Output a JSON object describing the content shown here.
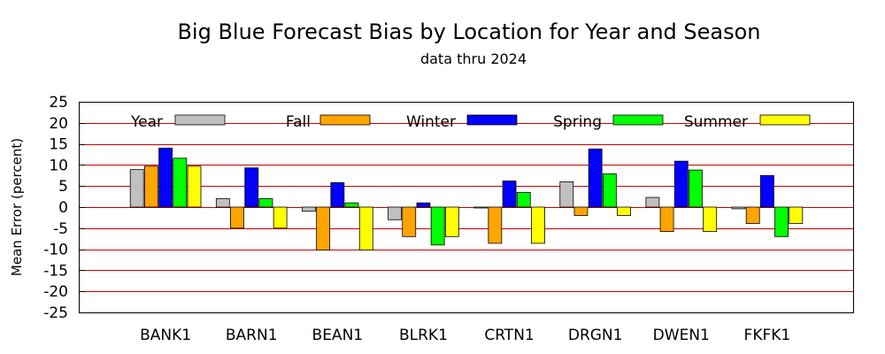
{
  "chart_data": {
    "type": "bar",
    "title": "Big Blue Forecast Bias by Location for Year and Season",
    "subtitle": "data thru 2024",
    "xlabel": "",
    "ylabel": "Mean Error (percent)",
    "ylim": [
      -25,
      25
    ],
    "yticks": [
      25,
      20,
      15,
      10,
      5,
      0,
      -5,
      -10,
      -15,
      -20,
      -25
    ],
    "ytick_labels": [
      "25",
      "20",
      "15",
      "10",
      "5",
      "0",
      "-5",
      "-10",
      "-15",
      "-20",
      "-25"
    ],
    "grid": true,
    "grid_color": "#cc0000",
    "legend_position": "top, inside plot",
    "categories": [
      "BANK1",
      "BARN1",
      "BEAN1",
      "BLRK1",
      "CRTN1",
      "DRGN1",
      "DWEN1",
      "FKFK1"
    ],
    "series": [
      {
        "name": "Year",
        "color": "#c0c0c0",
        "values": [
          8.9,
          2.0,
          -1.0,
          -3.0,
          0.0,
          6.0,
          2.3,
          -0.4
        ]
      },
      {
        "name": "Fall",
        "color": "#ffa500",
        "values": [
          9.7,
          -5.0,
          -10.2,
          -7.0,
          -8.6,
          -2.0,
          -5.8,
          -3.9
        ]
      },
      {
        "name": "Winter",
        "color": "#0000ff",
        "values": [
          14.0,
          9.3,
          5.8,
          1.0,
          6.2,
          13.8,
          10.9,
          7.5
        ]
      },
      {
        "name": "Spring",
        "color": "#00ff00",
        "values": [
          11.6,
          2.0,
          1.0,
          -9.0,
          3.5,
          7.9,
          8.8,
          -7.0
        ]
      },
      {
        "name": "Summer",
        "color": "#ffff00",
        "values": [
          9.7,
          -5.0,
          -10.2,
          -7.0,
          -8.6,
          -2.0,
          -5.8,
          -3.9
        ]
      }
    ]
  }
}
